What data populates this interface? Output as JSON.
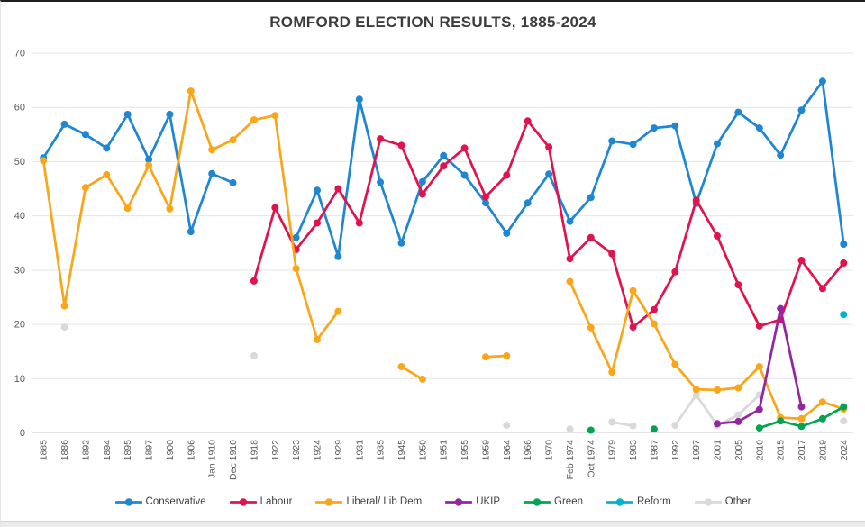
{
  "chart_data": {
    "type": "line",
    "title": "ROMFORD ELECTION RESULTS, 1885-2024",
    "categories": [
      "1885",
      "1886",
      "1892",
      "1894",
      "1895",
      "1897",
      "1900",
      "1906",
      "Jan 1910",
      "Dec 1910",
      "1918",
      "1922",
      "1923",
      "1924",
      "1929",
      "1931",
      "1935",
      "1945",
      "1950",
      "1951",
      "1955",
      "1959",
      "1964",
      "1966",
      "1970",
      "Feb 1974",
      "Oct 1974",
      "1979",
      "1983",
      "1987",
      "1992",
      "1997",
      "2001",
      "2005",
      "2010",
      "2015",
      "2017",
      "2019",
      "2024"
    ],
    "ylim": [
      0,
      70
    ],
    "yticks": [
      0,
      10,
      20,
      30,
      40,
      50,
      60,
      70
    ],
    "grid": "horizontal",
    "legend_position": "bottom",
    "series": [
      {
        "name": "Conservative",
        "color": "#1f86d2",
        "values": [
          50.7,
          56.9,
          55.0,
          52.5,
          58.7,
          50.4,
          58.7,
          37.1,
          47.8,
          46.1,
          null,
          null,
          36.0,
          44.7,
          32.5,
          61.5,
          46.2,
          35.0,
          46.3,
          51.1,
          47.5,
          42.4,
          36.8,
          42.4,
          47.7,
          39.0,
          43.4,
          53.8,
          53.2,
          56.2,
          56.6,
          42.3,
          53.3,
          59.1,
          56.2,
          51.2,
          59.5,
          64.8,
          34.8
        ]
      },
      {
        "name": "Labour",
        "color": "#e0134e",
        "values": [
          null,
          null,
          null,
          null,
          null,
          null,
          null,
          null,
          null,
          null,
          28.0,
          41.5,
          33.8,
          38.7,
          45.0,
          38.7,
          54.2,
          53.0,
          44.0,
          49.2,
          52.5,
          43.5,
          47.5,
          57.5,
          52.7,
          32.1,
          36.0,
          33.0,
          19.5,
          22.7,
          29.7,
          42.9,
          36.3,
          27.3,
          19.7,
          20.9,
          31.8,
          26.6,
          31.3
        ]
      },
      {
        "name": "Liberal/ Lib Dem",
        "color": "#faa61a",
        "values": [
          50.2,
          23.4,
          45.2,
          47.6,
          41.4,
          49.3,
          41.3,
          63.0,
          52.2,
          54.0,
          57.7,
          58.5,
          30.3,
          17.2,
          22.4,
          null,
          null,
          12.2,
          9.9,
          null,
          null,
          14.0,
          14.2,
          null,
          null,
          27.9,
          19.4,
          11.2,
          26.2,
          20.1,
          12.6,
          8.0,
          7.9,
          8.3,
          12.2,
          2.8,
          2.6,
          5.7,
          4.4
        ]
      },
      {
        "name": "UKIP",
        "color": "#93279f",
        "values": [
          null,
          null,
          null,
          null,
          null,
          null,
          null,
          null,
          null,
          null,
          null,
          null,
          null,
          null,
          null,
          null,
          null,
          null,
          null,
          null,
          null,
          null,
          null,
          null,
          null,
          null,
          null,
          null,
          null,
          null,
          null,
          null,
          1.7,
          2.1,
          4.3,
          22.9,
          4.8,
          null,
          null
        ]
      },
      {
        "name": "Green",
        "color": "#00a552",
        "values": [
          null,
          null,
          null,
          null,
          null,
          null,
          null,
          null,
          null,
          null,
          null,
          null,
          null,
          null,
          null,
          null,
          null,
          null,
          null,
          null,
          null,
          null,
          null,
          null,
          null,
          null,
          0.5,
          null,
          null,
          0.7,
          null,
          null,
          null,
          null,
          0.9,
          2.2,
          1.2,
          2.6,
          4.8
        ]
      },
      {
        "name": "Reform",
        "color": "#00b5c9",
        "values": [
          null,
          null,
          null,
          null,
          null,
          null,
          null,
          null,
          null,
          null,
          null,
          null,
          null,
          null,
          null,
          null,
          null,
          null,
          null,
          null,
          null,
          null,
          null,
          null,
          null,
          null,
          null,
          null,
          null,
          null,
          null,
          null,
          null,
          null,
          null,
          null,
          null,
          null,
          21.8
        ]
      },
      {
        "name": "Other",
        "color": "#d9d9d9",
        "values": [
          null,
          19.5,
          null,
          null,
          null,
          null,
          null,
          null,
          null,
          null,
          14.2,
          null,
          null,
          null,
          null,
          null,
          null,
          null,
          null,
          null,
          null,
          null,
          1.4,
          null,
          null,
          0.7,
          null,
          2.0,
          1.3,
          null,
          1.4,
          7.0,
          1.4,
          3.3,
          7.0,
          null,
          null,
          null,
          2.2
        ]
      }
    ]
  }
}
